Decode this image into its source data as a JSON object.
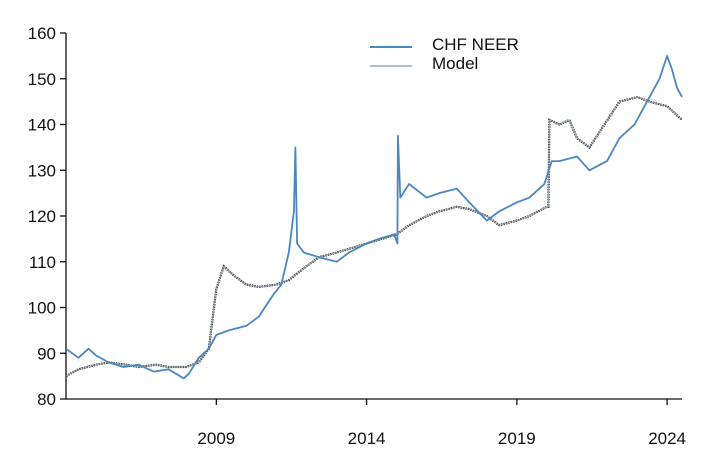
{
  "chart_data": {
    "type": "line",
    "title": "",
    "xlabel": "",
    "ylabel": "",
    "ylim": [
      80,
      160
    ],
    "xlim": [
      "2004-01-01",
      "2024-06-30"
    ],
    "y_ticks": [
      80,
      90,
      100,
      110,
      120,
      130,
      140,
      150,
      160
    ],
    "x_ticks": [
      {
        "date": "2009-01-01",
        "label": "2009"
      },
      {
        "date": "2014-01-01",
        "label": "2014"
      },
      {
        "date": "2019-01-01",
        "label": "2019"
      },
      {
        "date": "2024-01-01",
        "label": "2024"
      }
    ],
    "grid": false,
    "legend_position": "top-center",
    "series": [
      {
        "name": "CHF NEER",
        "color": "#4a86c0",
        "points": [
          [
            "2004-01-01",
            91
          ],
          [
            "2004-06-01",
            89
          ],
          [
            "2004-10-01",
            91
          ],
          [
            "2005-01-01",
            89.5
          ],
          [
            "2005-06-01",
            88
          ],
          [
            "2005-12-01",
            87
          ],
          [
            "2006-06-01",
            87.5
          ],
          [
            "2006-12-01",
            86
          ],
          [
            "2007-06-01",
            86.5
          ],
          [
            "2007-12-01",
            84.5
          ],
          [
            "2008-02-01",
            85.5
          ],
          [
            "2008-06-01",
            89
          ],
          [
            "2008-10-01",
            91
          ],
          [
            "2009-01-01",
            94
          ],
          [
            "2009-06-01",
            95
          ],
          [
            "2010-01-01",
            96
          ],
          [
            "2010-06-01",
            98
          ],
          [
            "2010-12-01",
            103
          ],
          [
            "2011-03-01",
            105
          ],
          [
            "2011-06-01",
            112
          ],
          [
            "2011-08-01",
            121
          ],
          [
            "2011-08-20",
            135
          ],
          [
            "2011-09-10",
            114
          ],
          [
            "2011-12-01",
            112
          ],
          [
            "2012-06-01",
            111
          ],
          [
            "2013-01-01",
            110
          ],
          [
            "2013-06-01",
            112
          ],
          [
            "2014-01-01",
            114
          ],
          [
            "2014-06-01",
            115
          ],
          [
            "2014-12-01",
            116
          ],
          [
            "2015-01-10",
            114
          ],
          [
            "2015-01-16",
            137.5
          ],
          [
            "2015-02-15",
            124
          ],
          [
            "2015-06-01",
            127
          ],
          [
            "2016-01-01",
            124
          ],
          [
            "2016-06-01",
            125
          ],
          [
            "2017-01-01",
            126
          ],
          [
            "2017-06-01",
            123
          ],
          [
            "2018-01-01",
            119
          ],
          [
            "2018-06-01",
            121
          ],
          [
            "2019-01-01",
            123
          ],
          [
            "2019-06-01",
            124
          ],
          [
            "2019-12-01",
            127
          ],
          [
            "2020-03-01",
            132
          ],
          [
            "2020-06-01",
            132
          ],
          [
            "2021-01-01",
            133
          ],
          [
            "2021-06-01",
            130
          ],
          [
            "2022-01-01",
            132
          ],
          [
            "2022-06-01",
            137
          ],
          [
            "2022-12-01",
            140
          ],
          [
            "2023-06-01",
            146
          ],
          [
            "2023-10-01",
            150
          ],
          [
            "2024-01-01",
            155
          ],
          [
            "2024-03-01",
            152
          ],
          [
            "2024-05-01",
            148
          ],
          [
            "2024-06-30",
            146
          ]
        ]
      },
      {
        "name": "Model",
        "color": "#9aa7b5",
        "points": [
          [
            "2004-01-01",
            85
          ],
          [
            "2004-06-01",
            86.5
          ],
          [
            "2005-01-01",
            87.5
          ],
          [
            "2005-06-01",
            88
          ],
          [
            "2006-01-01",
            87.5
          ],
          [
            "2006-06-01",
            87
          ],
          [
            "2007-01-01",
            87.5
          ],
          [
            "2007-06-01",
            87
          ],
          [
            "2008-01-01",
            87
          ],
          [
            "2008-06-01",
            88
          ],
          [
            "2008-10-01",
            91
          ],
          [
            "2009-01-01",
            104
          ],
          [
            "2009-04-01",
            109
          ],
          [
            "2009-08-01",
            107
          ],
          [
            "2010-01-01",
            105
          ],
          [
            "2010-06-01",
            104.5
          ],
          [
            "2011-01-01",
            105
          ],
          [
            "2011-06-01",
            106
          ],
          [
            "2012-01-01",
            109
          ],
          [
            "2012-06-01",
            111
          ],
          [
            "2013-01-01",
            112
          ],
          [
            "2014-01-01",
            114
          ],
          [
            "2015-01-01",
            116
          ],
          [
            "2015-06-01",
            118
          ],
          [
            "2016-01-01",
            120
          ],
          [
            "2016-06-01",
            121
          ],
          [
            "2017-01-01",
            122
          ],
          [
            "2017-06-01",
            121.5
          ],
          [
            "2018-01-01",
            120
          ],
          [
            "2018-06-01",
            118
          ],
          [
            "2019-01-01",
            119
          ],
          [
            "2019-06-01",
            120
          ],
          [
            "2020-01-01",
            122
          ],
          [
            "2020-01-20",
            122
          ],
          [
            "2020-02-01",
            141
          ],
          [
            "2020-06-01",
            140
          ],
          [
            "2020-10-01",
            141
          ],
          [
            "2021-01-01",
            137
          ],
          [
            "2021-06-01",
            135
          ],
          [
            "2021-12-01",
            140
          ],
          [
            "2022-06-01",
            145
          ],
          [
            "2023-01-01",
            146
          ],
          [
            "2023-06-01",
            145
          ],
          [
            "2024-01-01",
            144
          ],
          [
            "2024-06-30",
            141
          ]
        ]
      }
    ]
  }
}
